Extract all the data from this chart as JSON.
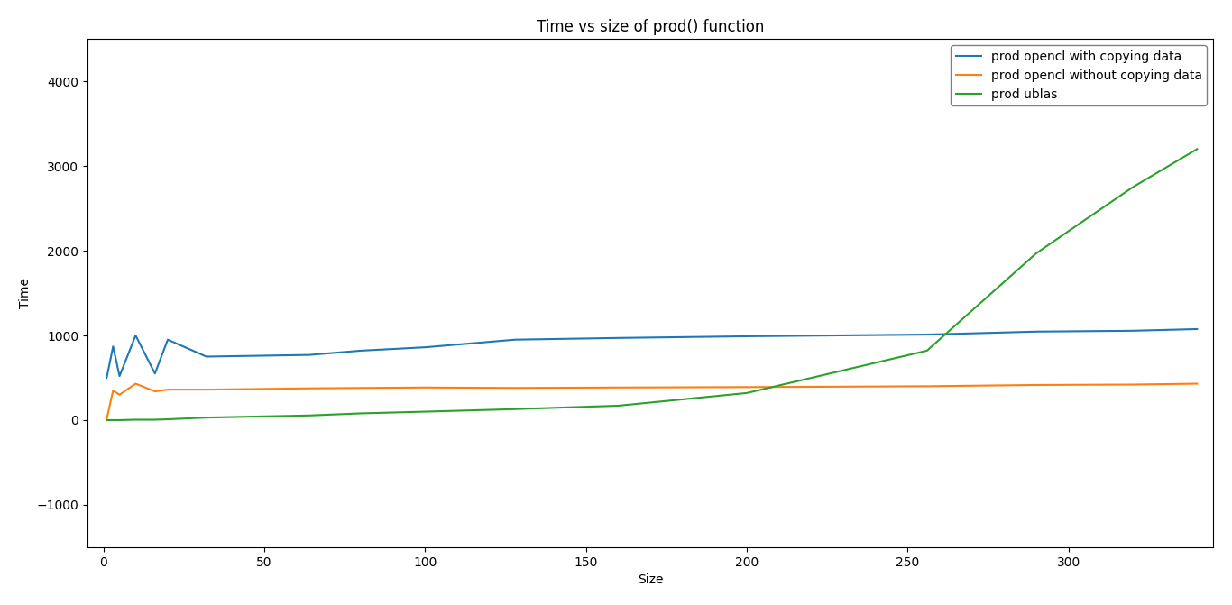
{
  "title": "Time vs size of prod() function",
  "xlabel": "Size",
  "ylabel": "Time",
  "legend": [
    "prod opencl with copying data",
    "prod opencl without copying data",
    "prod ublas"
  ],
  "colors": [
    "#1f77b4",
    "#ff7f0e",
    "#2ca02c"
  ],
  "blue_x": [
    1,
    3,
    5,
    10,
    16,
    20,
    32,
    64,
    80,
    100,
    128,
    160,
    200,
    256,
    290,
    320,
    340
  ],
  "blue_y": [
    500,
    870,
    520,
    1000,
    550,
    950,
    750,
    770,
    820,
    860,
    950,
    970,
    990,
    1010,
    1045,
    1055,
    1075
  ],
  "orange_x": [
    1,
    3,
    5,
    10,
    16,
    20,
    32,
    64,
    80,
    100,
    128,
    160,
    200,
    256,
    290,
    320,
    340
  ],
  "orange_y": [
    10,
    350,
    300,
    430,
    340,
    360,
    360,
    375,
    380,
    385,
    380,
    385,
    390,
    400,
    415,
    420,
    430
  ],
  "green_x": [
    1,
    3,
    5,
    10,
    16,
    20,
    32,
    64,
    80,
    100,
    128,
    160,
    200,
    256,
    290,
    320,
    340
  ],
  "green_y": [
    0,
    0,
    0,
    5,
    5,
    10,
    30,
    55,
    80,
    100,
    130,
    170,
    320,
    820,
    1970,
    2750,
    3200
  ],
  "xlim": [
    -5,
    345
  ],
  "ylim": [
    -1500,
    4500
  ],
  "yticks": [
    -1000,
    0,
    1000,
    2000,
    3000,
    4000
  ],
  "xticks": [
    0,
    50,
    100,
    150,
    200,
    250,
    300
  ],
  "figsize": [
    13.66,
    6.71
  ],
  "dpi": 100
}
